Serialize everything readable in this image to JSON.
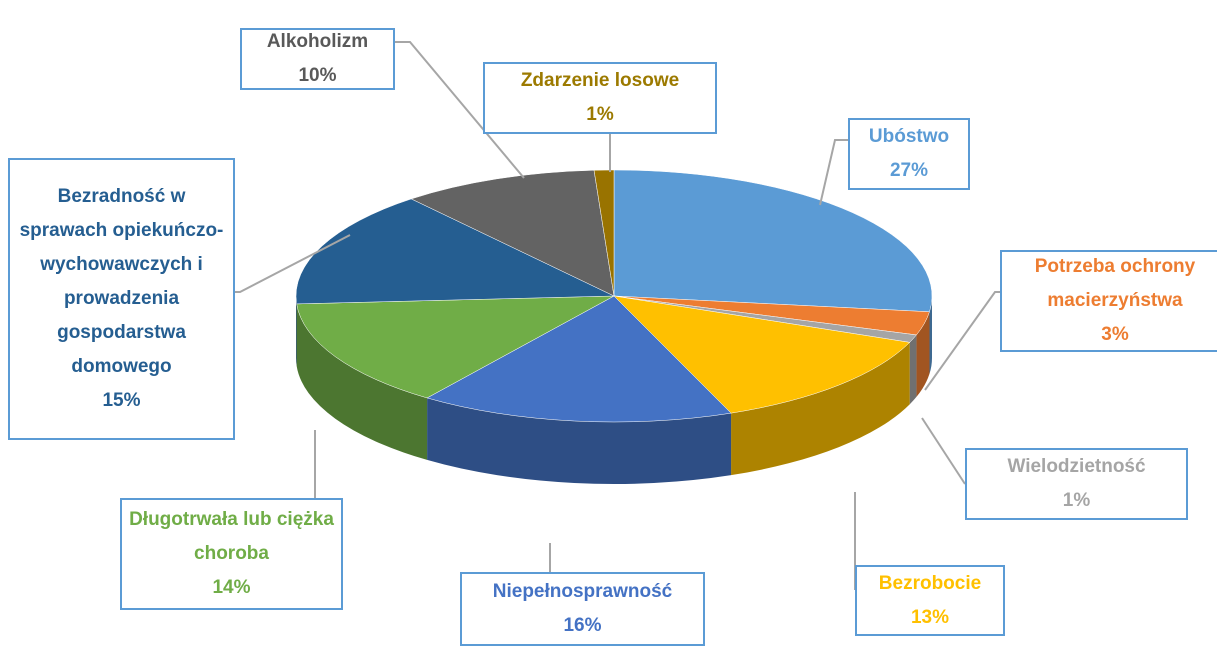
{
  "chart_data": {
    "type": "pie",
    "categories": [
      "Ubóstwo",
      "Potrzeba ochrony macierzyństwa",
      "Wielodzietność",
      "Bezrobocie",
      "Niepełnosprawność",
      "Długotrwała lub ciężka choroba",
      "Bezradność w sprawach opiekuńczo-wychowawczych i prowadzenia gospodarstwa domowego",
      "Alkoholizm",
      "Zdarzenie losowe"
    ],
    "values": [
      27,
      3,
      1,
      13,
      16,
      14,
      15,
      10,
      1
    ],
    "value_labels": [
      "27%",
      "3%",
      "1%",
      "13%",
      "16%",
      "14%",
      "15%",
      "10%",
      "1%"
    ],
    "colors": [
      "#5b9bd5",
      "#ed7d31",
      "#a5a5a5",
      "#ffc000",
      "#4472c4",
      "#70ad47",
      "#255e91",
      "#636363",
      "#997300"
    ],
    "label_colors": [
      "#5b9bd5",
      "#ed7d31",
      "#a5a5a5",
      "#ffc000",
      "#4472c4",
      "#70ad47",
      "#255e91",
      "#595959",
      "#9c7a00"
    ]
  }
}
